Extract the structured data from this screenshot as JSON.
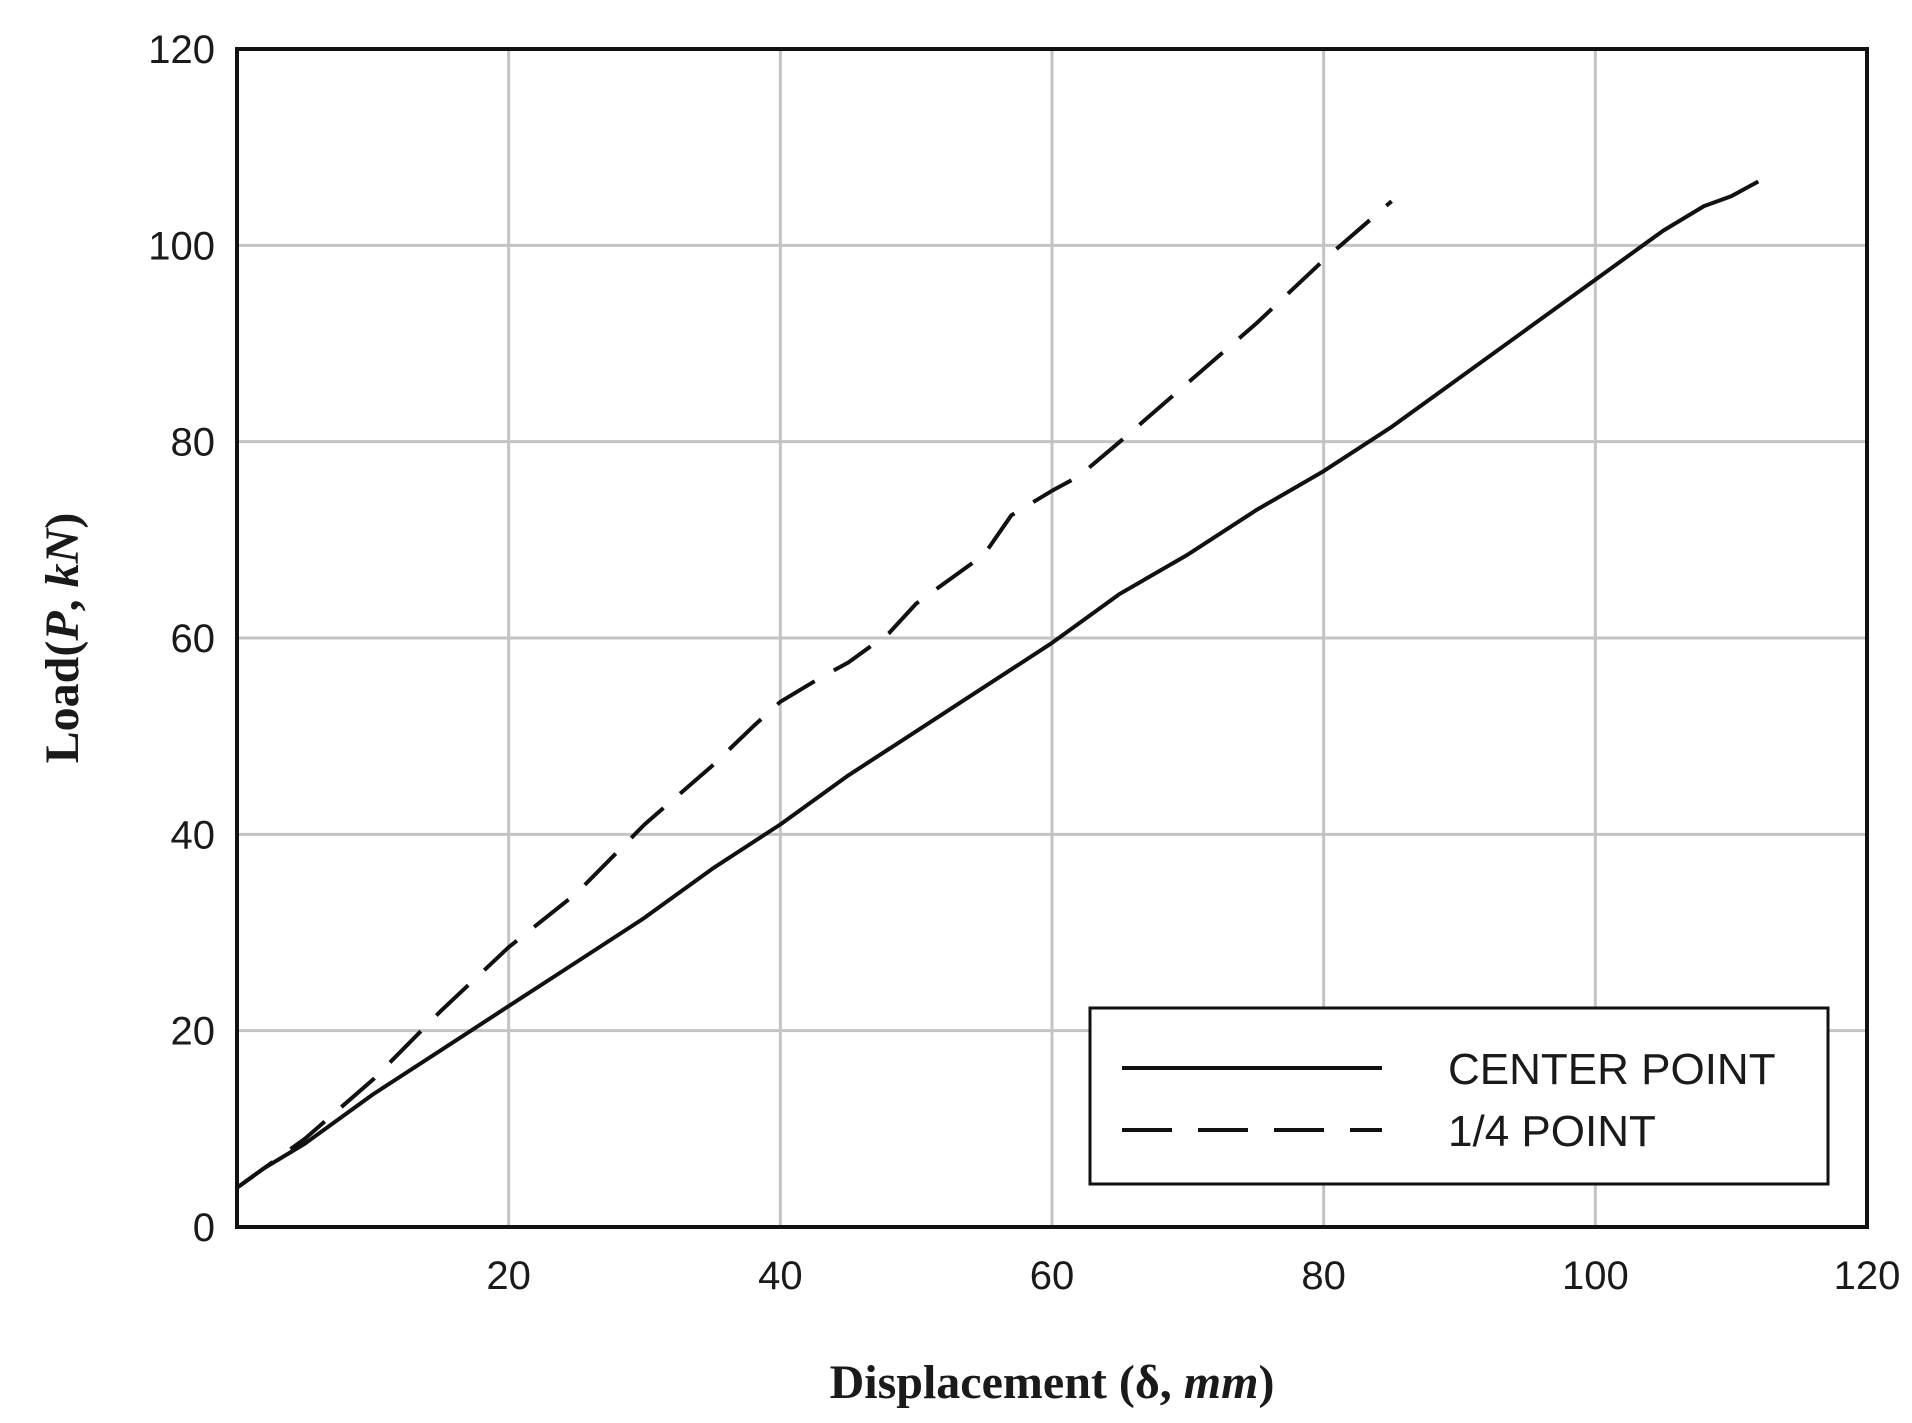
{
  "chart_data": {
    "type": "line",
    "xlabel": "Displacement (δ, mm)",
    "xlabel_parts": {
      "a": "Displacement (δ, ",
      "b": "mm",
      "c": ")"
    },
    "ylabel": "Load(P, kN)",
    "ylabel_parts": {
      "a": "Load(",
      "b": "P",
      "c": ", ",
      "d": "kN",
      "e": ")"
    },
    "xlim": [
      0,
      120
    ],
    "ylim": [
      0,
      120
    ],
    "xticks": [
      20,
      40,
      60,
      80,
      100,
      120
    ],
    "yticks": [
      0,
      20,
      40,
      60,
      80,
      100,
      120
    ],
    "grid": true,
    "legend_position": "bottom-right",
    "series": [
      {
        "name": "CENTER POINT",
        "style": "solid",
        "color": "#111111",
        "x": [
          0,
          2,
          5,
          10,
          15,
          20,
          25,
          30,
          35,
          40,
          45,
          50,
          55,
          60,
          65,
          70,
          75,
          80,
          85,
          90,
          95,
          100,
          105,
          108,
          110,
          112
        ],
        "y": [
          4,
          6,
          8.5,
          13.5,
          18,
          22.5,
          27,
          31.5,
          36.5,
          41,
          46,
          50.5,
          55,
          59.5,
          64.5,
          68.5,
          73,
          77,
          81.5,
          86.5,
          91.5,
          96.5,
          101.5,
          104,
          105,
          106.5
        ]
      },
      {
        "name": "1/4 POINT",
        "style": "dashed",
        "color": "#111111",
        "x": [
          0,
          2,
          5,
          10,
          15,
          20,
          25,
          30,
          35,
          38,
          40,
          43,
          45,
          48,
          50,
          55,
          57,
          60,
          62,
          65,
          70,
          75,
          80,
          85
        ],
        "y": [
          4,
          6,
          9,
          15,
          22,
          28.5,
          34,
          41,
          47,
          51,
          53.5,
          56,
          57.5,
          60.5,
          63.5,
          68.5,
          72.5,
          75,
          76.5,
          80,
          86,
          92,
          98.5,
          104.5
        ]
      }
    ]
  }
}
